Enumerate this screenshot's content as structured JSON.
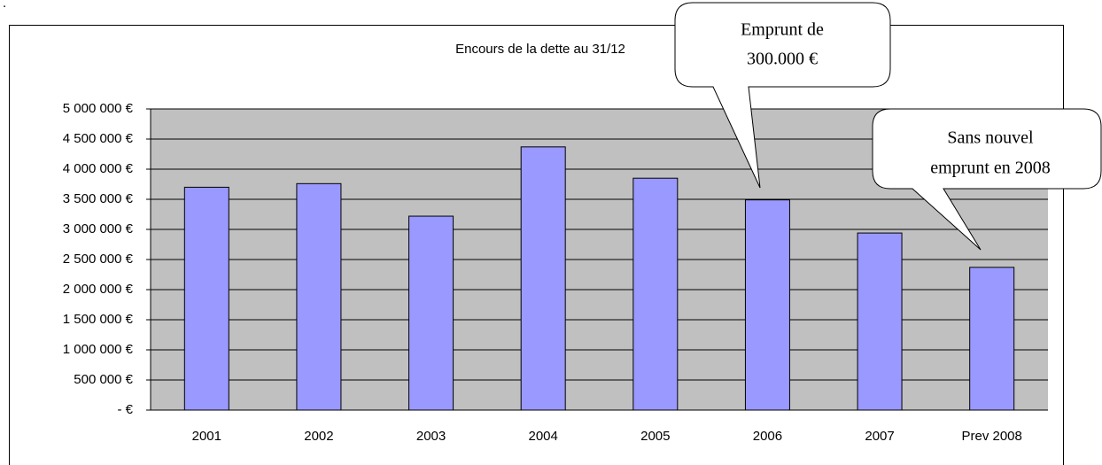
{
  "note": ".",
  "chart_data": {
    "type": "bar",
    "title": "Encours de la dette au 31/12",
    "categories": [
      "2001",
      "2002",
      "2003",
      "2004",
      "2005",
      "2006",
      "2007",
      "Prev 2008"
    ],
    "values": [
      3700000,
      3760000,
      3220000,
      4370000,
      3850000,
      3490000,
      2940000,
      2370000
    ],
    "color": "#9999ff",
    "ylim": [
      0,
      5000000
    ],
    "yticks": [
      {
        "value": 0,
        "label": "-   €"
      },
      {
        "value": 500000,
        "label": "500 000 €"
      },
      {
        "value": 1000000,
        "label": "1 000 000 €"
      },
      {
        "value": 1500000,
        "label": "1 500 000 €"
      },
      {
        "value": 2000000,
        "label": "2 000 000 €"
      },
      {
        "value": 2500000,
        "label": "2 500 000 €"
      },
      {
        "value": 3000000,
        "label": "3 000 000 €"
      },
      {
        "value": 3500000,
        "label": "3 500 000 €"
      },
      {
        "value": 4000000,
        "label": "4 000 000 €"
      },
      {
        "value": 4500000,
        "label": "4 500 000 €"
      },
      {
        "value": 5000000,
        "label": "5 000 000 €"
      }
    ],
    "grid": true,
    "annotations": [
      {
        "lines": [
          "Emprunt de",
          "300.000 €"
        ]
      },
      {
        "lines": [
          "Sans nouvel",
          "emprunt en 2008"
        ]
      }
    ]
  }
}
